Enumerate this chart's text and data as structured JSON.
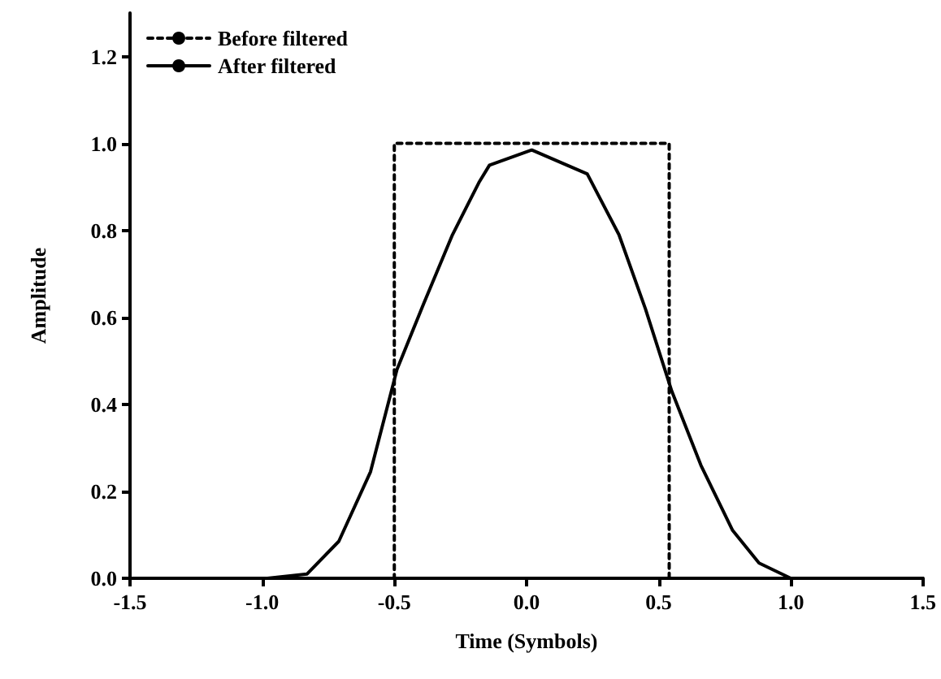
{
  "chart_data": {
    "type": "line",
    "xlabel": "Time (Symbols)",
    "ylabel": "Amplitude",
    "xlim": [
      -1.5,
      1.5
    ],
    "xticks": [
      {
        "value": -1.5,
        "label": "-1.5"
      },
      {
        "value": -1,
        "label": "-1.0"
      },
      {
        "value": -0.5,
        "label": "-0.5"
      },
      {
        "value": 0,
        "label": "0.0"
      },
      {
        "value": 0.5,
        "label": "0.5"
      },
      {
        "value": 1,
        "label": "1.0"
      },
      {
        "value": 1.5,
        "label": "1.5"
      }
    ],
    "ylim": [
      0,
      1.3
    ],
    "yticks": [
      {
        "value": 0,
        "label": "0.0"
      },
      {
        "value": 0.2,
        "label": "0.2"
      },
      {
        "value": 0.4,
        "label": "0.4"
      },
      {
        "value": 0.6,
        "label": "0.6"
      },
      {
        "value": 0.8,
        "label": "0.8"
      },
      {
        "value": 1,
        "label": "1.0"
      },
      {
        "value": 1.2,
        "label": "1.2"
      }
    ],
    "grid": false,
    "legend": "top left",
    "marker": "none",
    "series": [
      {
        "name": "Before filtered",
        "color": "#000000",
        "line_style": "dotted",
        "x": [
          -1.5,
          -0.5,
          -0.5,
          0.54,
          0.54,
          1.5
        ],
        "values": [
          0,
          0,
          1,
          1,
          0,
          0
        ]
      },
      {
        "name": "After filtered",
        "color": "#000000",
        "line_style": "solid",
        "x": [
          -1.5,
          -0.98,
          -0.83,
          -0.71,
          -0.59,
          -0.49,
          -0.39,
          -0.28,
          -0.18,
          -0.14,
          0.02,
          0.23,
          0.35,
          0.45,
          0.55,
          0.66,
          0.78,
          0.88,
          1.0,
          1.5
        ],
        "values": [
          0,
          0,
          0.01,
          0.085,
          0.245,
          0.48,
          0.63,
          0.79,
          0.91,
          0.95,
          0.985,
          0.93,
          0.79,
          0.62,
          0.43,
          0.26,
          0.11,
          0.035,
          0,
          0
        ]
      }
    ]
  }
}
